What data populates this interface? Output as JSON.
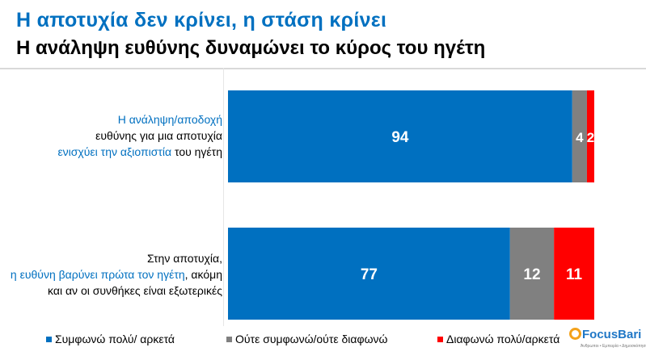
{
  "header": {
    "title": "Η αποτυχία δεν κρίνει, η στάση κρίνει",
    "subtitle": "Η ανάληψη ευθύνης δυναμώνει το κύρος του ηγέτη"
  },
  "chart_data": {
    "type": "bar",
    "orientation": "horizontal",
    "stacked": true,
    "xlim": [
      0,
      100
    ],
    "grid": false,
    "legend_position": "bottom",
    "categories": [
      [
        {
          "text": "Η ανάληψη/αποδοχή",
          "highlight": true
        },
        {
          "text": "ευθύνης για μια αποτυχία",
          "highlight": false,
          "br": true
        },
        {
          "text": "ενισχύει την αξιοπιστία",
          "highlight": true,
          "br": true
        },
        {
          "text": " του ηγέτη",
          "highlight": false
        }
      ],
      [
        {
          "text": "Στην αποτυχία,",
          "highlight": false
        },
        {
          "text": "η ευθύνη βαρύνει πρώτα τον ηγέτη",
          "highlight": true,
          "br": true
        },
        {
          "text": ", ακόμη",
          "highlight": false
        },
        {
          "text": "και αν οι συνθήκες είναι εξωτερικές",
          "highlight": false,
          "br": true
        }
      ]
    ],
    "series": [
      {
        "name": "Συμφωνώ πολύ/ αρκετά",
        "color": "#0070c0",
        "values": [
          94,
          77
        ]
      },
      {
        "name": "Ούτε συμφωνώ/ούτε διαφωνώ",
        "color": "#808080",
        "values": [
          4,
          12
        ]
      },
      {
        "name": "Διαφωνώ πολύ/αρκετά",
        "color": "#ff0000",
        "values": [
          2,
          11
        ]
      }
    ]
  },
  "logo": {
    "text": "FocusBari",
    "tagline": "Άνθρωποι • Εμπειρία • Δημοσκόπηση"
  }
}
